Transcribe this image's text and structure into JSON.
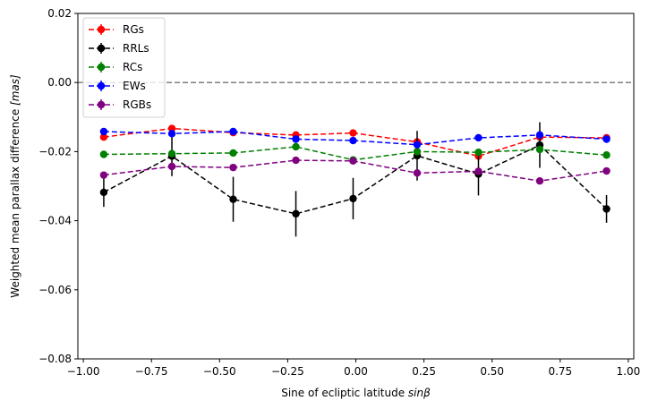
{
  "chart_data": {
    "type": "line",
    "title": "",
    "xlabel": "Sine of ecliptic latitude ",
    "xlabel_math": "sinβ",
    "ylabel": "Weighted mean parallax difference ",
    "ylabel_math": "[mas]",
    "xlim": [
      -1.02,
      1.02
    ],
    "ylim": [
      -0.08,
      0.02
    ],
    "xticks": [
      -1.0,
      -0.75,
      -0.5,
      -0.25,
      0.0,
      0.25,
      0.5,
      0.75,
      1.0
    ],
    "xtick_labels": [
      "−1.00",
      "−0.75",
      "−0.50",
      "−0.25",
      "0.00",
      "0.25",
      "0.50",
      "0.75",
      "1.00"
    ],
    "yticks": [
      0.02,
      0.0,
      -0.02,
      -0.04,
      -0.06,
      -0.08
    ],
    "ytick_labels": [
      "0.02",
      "0.00",
      "−0.02",
      "−0.04",
      "−0.06",
      "−0.08"
    ],
    "reference_line": {
      "y": 0.0,
      "color": "#808080",
      "style": "dashed"
    },
    "legend_position": "upper-left",
    "x": [
      -0.925,
      -0.675,
      -0.45,
      -0.22,
      -0.01,
      0.225,
      0.45,
      0.675,
      0.92
    ],
    "series": [
      {
        "name": "RGs",
        "color": "#ff0000",
        "values": [
          -0.0158,
          -0.0133,
          -0.0145,
          -0.0152,
          -0.0146,
          -0.0172,
          -0.0213,
          -0.0158,
          -0.016
        ],
        "errors": [
          0.0008,
          0.0008,
          0.0007,
          0.0007,
          0.0007,
          0.0008,
          0.0009,
          0.0008,
          0.0008
        ]
      },
      {
        "name": "RRLs",
        "color": "#000000",
        "values": [
          -0.0318,
          -0.0213,
          -0.0338,
          -0.038,
          -0.0336,
          -0.0212,
          -0.0265,
          -0.0181,
          -0.0366
        ],
        "errors": [
          0.0042,
          0.0058,
          0.0065,
          0.0066,
          0.006,
          0.0072,
          0.0062,
          0.0066,
          0.004
        ]
      },
      {
        "name": "RCs",
        "color": "#008000",
        "values": [
          -0.0208,
          -0.0206,
          -0.0204,
          -0.0186,
          -0.0224,
          -0.02,
          -0.0202,
          -0.0194,
          -0.021
        ],
        "errors": [
          0.0006,
          0.0006,
          0.0006,
          0.0006,
          0.0006,
          0.0006,
          0.0006,
          0.0006,
          0.0006
        ]
      },
      {
        "name": "EWs",
        "color": "#0000ff",
        "values": [
          -0.0142,
          -0.0148,
          -0.0142,
          -0.0164,
          -0.0168,
          -0.018,
          -0.016,
          -0.0152,
          -0.0164
        ],
        "errors": [
          0.0005,
          0.0005,
          0.0005,
          0.0005,
          0.0005,
          0.0005,
          0.0005,
          0.0005,
          0.0005
        ]
      },
      {
        "name": "RGBs",
        "color": "#800080",
        "values": [
          -0.0268,
          -0.0243,
          -0.0246,
          -0.0225,
          -0.0227,
          -0.0262,
          -0.0257,
          -0.0285,
          -0.0256
        ],
        "errors": [
          0.0006,
          0.0006,
          0.0006,
          0.0006,
          0.0006,
          0.0006,
          0.0006,
          0.0006,
          0.0006
        ]
      }
    ]
  }
}
